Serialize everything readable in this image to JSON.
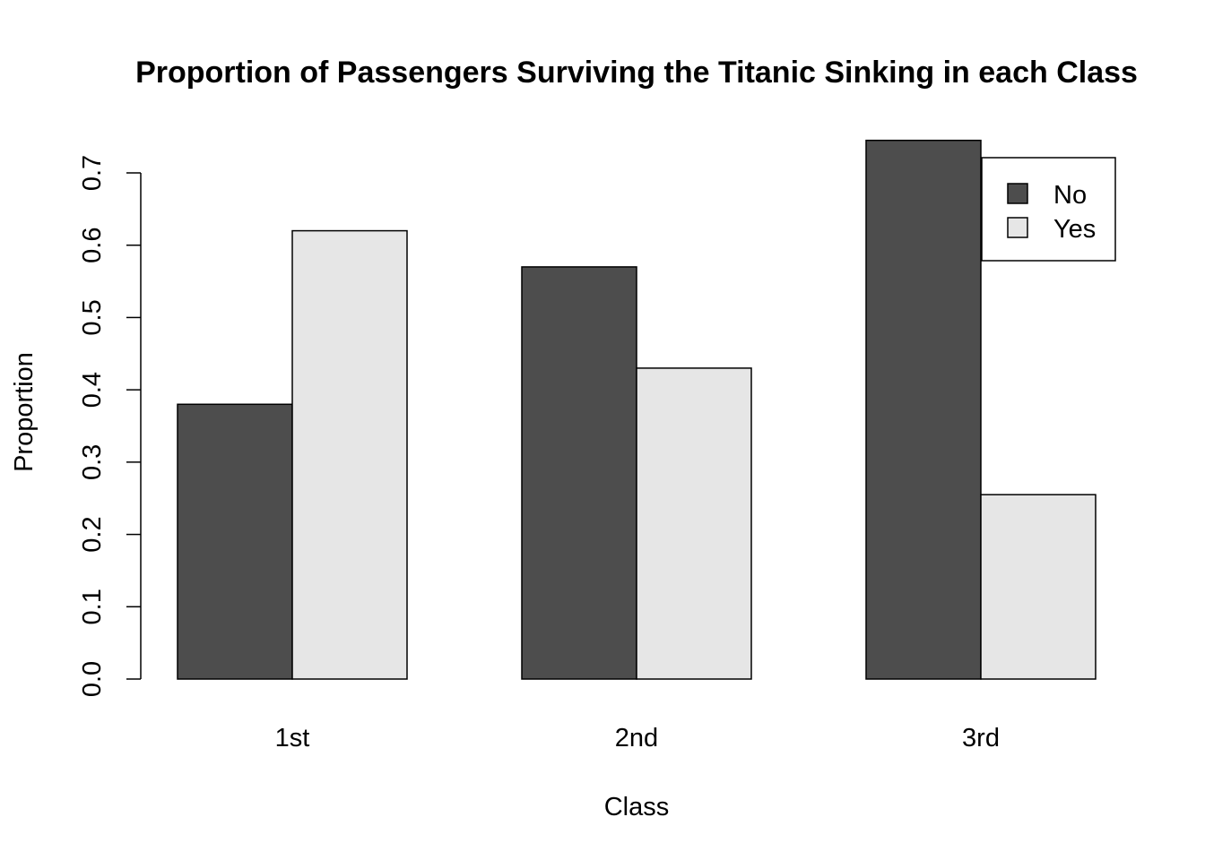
{
  "chart_data": {
    "type": "bar",
    "title": "Proportion of Passengers Surviving the Titanic Sinking in each Class",
    "xlabel": "Class",
    "ylabel": "Proportion",
    "categories": [
      "1st",
      "2nd",
      "3rd"
    ],
    "series": [
      {
        "name": "No",
        "color": "#4d4d4d",
        "values": [
          0.38,
          0.57,
          0.745
        ]
      },
      {
        "name": "Yes",
        "color": "#e6e6e6",
        "values": [
          0.62,
          0.43,
          0.255
        ]
      }
    ],
    "ylim": [
      0,
      0.7
    ],
    "yticks": [
      "0.0",
      "0.1",
      "0.2",
      "0.3",
      "0.4",
      "0.5",
      "0.6",
      "0.7"
    ],
    "legend_position": "top-right",
    "grid": false
  }
}
